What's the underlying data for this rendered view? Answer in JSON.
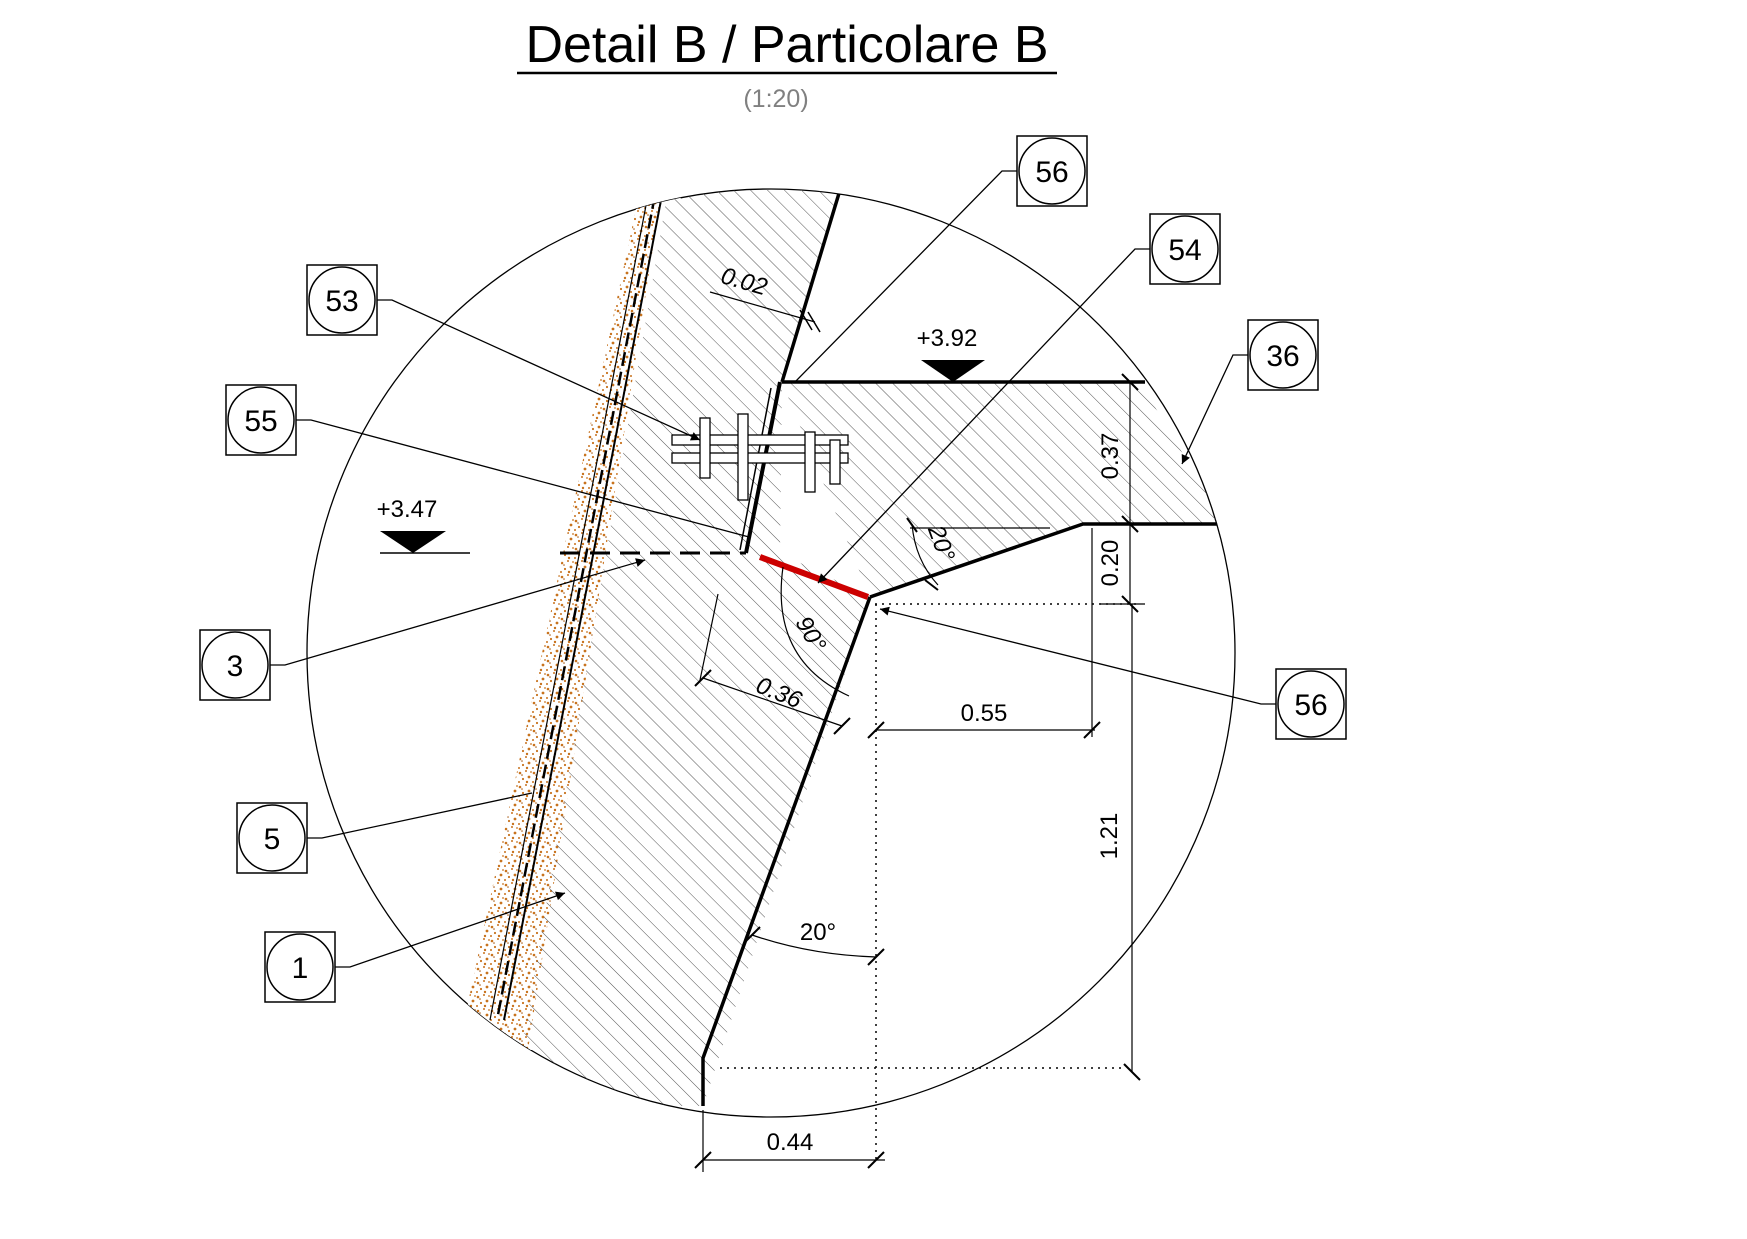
{
  "title": "Detail B / Particolare B",
  "scale": "(1:20)",
  "levels": {
    "upper": "+3.92",
    "lower": "+3.47"
  },
  "dimensions": {
    "liner": "0.02",
    "slab_thickness": "0.37",
    "haunch_height": "0.20",
    "haunch_width": "0.55",
    "wall_thickness": "0.36",
    "base_height": "1.21",
    "base_offset": "0.44"
  },
  "angles": {
    "right": "90°",
    "haunch": "20°",
    "wall": "20°"
  },
  "tags": {
    "t53": "53",
    "t55": "55",
    "t3": "3",
    "t5": "5",
    "t1": "1",
    "t56_top": "56",
    "t54": "54",
    "t36": "36",
    "t56_right": "56"
  },
  "colors": {
    "waterproofing_red": "#cc0000",
    "soil_orange": "#c8731e"
  }
}
